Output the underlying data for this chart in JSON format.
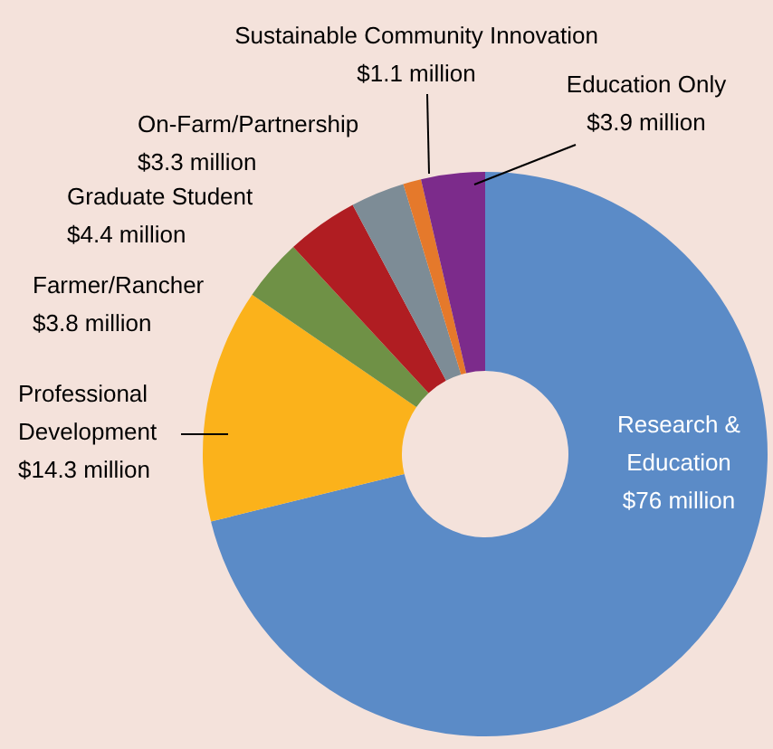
{
  "chart_data": {
    "type": "donut",
    "categories": [
      "Research & Education",
      "Professional Development",
      "Farmer/Rancher",
      "Graduate Student",
      "On-Farm/Partnership",
      "Sustainable Community Innovation",
      "Education Only"
    ],
    "values": [
      76,
      14.3,
      3.8,
      4.4,
      3.3,
      1.1,
      3.9
    ],
    "value_labels": [
      "$76 million",
      "$14.3 million",
      "$3.8 million",
      "$4.4 million",
      "$3.3 million",
      "$1.1 million",
      "$3.9 million"
    ],
    "colors": [
      "#5b8bc7",
      "#fbb21b",
      "#6f9146",
      "#b01d22",
      "#7d8c96",
      "#e5792b",
      "#7c2b8b"
    ]
  }
}
